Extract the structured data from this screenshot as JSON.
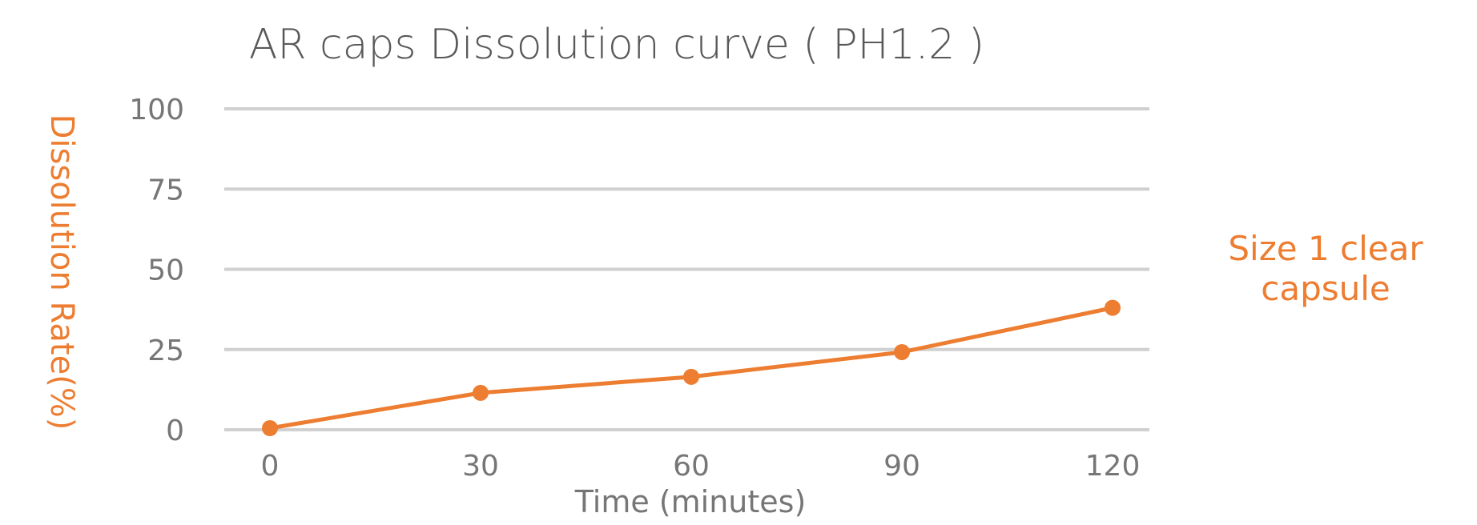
{
  "chart_data": {
    "type": "line",
    "title": "AR caps Dissolution curve ( PH1.2 )",
    "xlabel": "Time (minutes)",
    "ylabel": "Dissolution Rate(%)",
    "categories": [
      "0",
      "30",
      "60",
      "90",
      "120"
    ],
    "x": [
      0,
      30,
      60,
      90,
      120
    ],
    "yticks": [
      "0",
      "25",
      "50",
      "75",
      "100"
    ],
    "ylim": [
      0,
      100
    ],
    "grid": true,
    "legend_position": "right",
    "series": [
      {
        "name": "Size 1 clear capsule",
        "legend_lines": [
          "Size 1 clear",
          "capsule"
        ],
        "values": [
          0.5,
          11.5,
          16.5,
          24.2,
          38.0
        ],
        "color": "#ED7D31"
      }
    ]
  }
}
